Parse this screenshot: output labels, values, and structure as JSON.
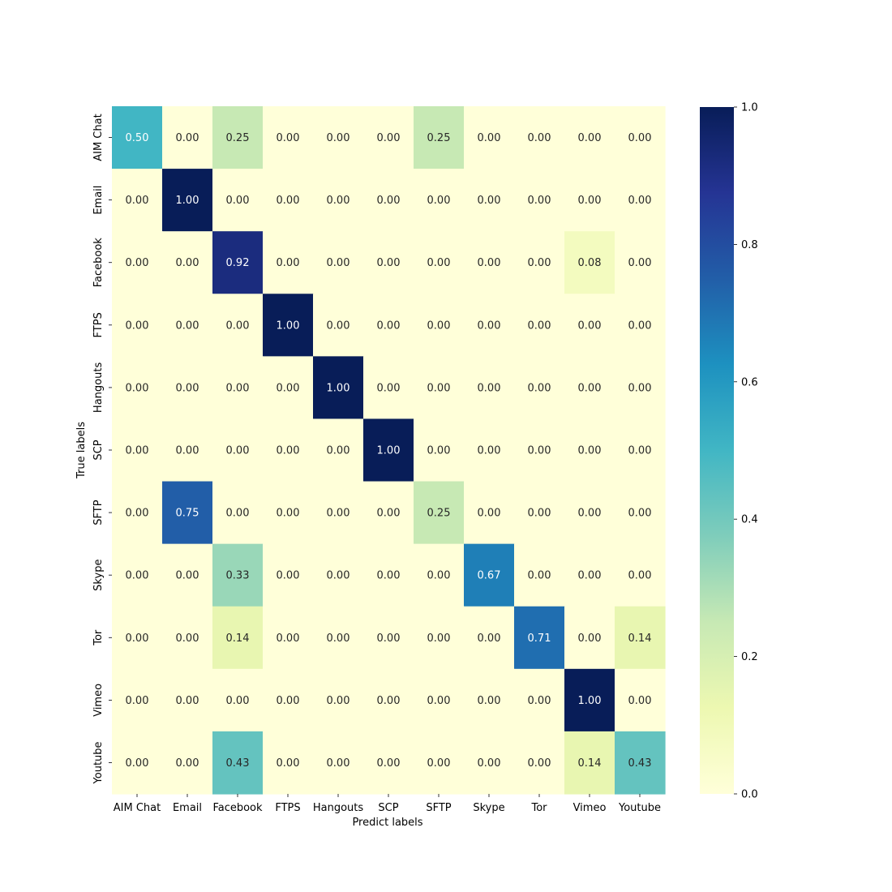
{
  "chart_data": {
    "type": "heatmap",
    "title": "",
    "xlabel": "Predict labels",
    "ylabel": "True labels",
    "x_categories": [
      "AIM Chat",
      "Email",
      "Facebook",
      "FTPS",
      "Hangouts",
      "SCP",
      "SFTP",
      "Skype",
      "Tor",
      "Vimeo",
      "Youtube"
    ],
    "y_categories": [
      "AIM Chat",
      "Email",
      "Facebook",
      "FTPS",
      "Hangouts",
      "SCP",
      "SFTP",
      "Skype",
      "Tor",
      "Vimeo",
      "Youtube"
    ],
    "values": [
      [
        0.5,
        0.0,
        0.25,
        0.0,
        0.0,
        0.0,
        0.25,
        0.0,
        0.0,
        0.0,
        0.0
      ],
      [
        0.0,
        1.0,
        0.0,
        0.0,
        0.0,
        0.0,
        0.0,
        0.0,
        0.0,
        0.0,
        0.0
      ],
      [
        0.0,
        0.0,
        0.92,
        0.0,
        0.0,
        0.0,
        0.0,
        0.0,
        0.0,
        0.08,
        0.0
      ],
      [
        0.0,
        0.0,
        0.0,
        1.0,
        0.0,
        0.0,
        0.0,
        0.0,
        0.0,
        0.0,
        0.0
      ],
      [
        0.0,
        0.0,
        0.0,
        0.0,
        1.0,
        0.0,
        0.0,
        0.0,
        0.0,
        0.0,
        0.0
      ],
      [
        0.0,
        0.0,
        0.0,
        0.0,
        0.0,
        1.0,
        0.0,
        0.0,
        0.0,
        0.0,
        0.0
      ],
      [
        0.0,
        0.75,
        0.0,
        0.0,
        0.0,
        0.0,
        0.25,
        0.0,
        0.0,
        0.0,
        0.0
      ],
      [
        0.0,
        0.0,
        0.33,
        0.0,
        0.0,
        0.0,
        0.0,
        0.67,
        0.0,
        0.0,
        0.0
      ],
      [
        0.0,
        0.0,
        0.14,
        0.0,
        0.0,
        0.0,
        0.0,
        0.0,
        0.71,
        0.0,
        0.14
      ],
      [
        0.0,
        0.0,
        0.0,
        0.0,
        0.0,
        0.0,
        0.0,
        0.0,
        0.0,
        1.0,
        0.0
      ],
      [
        0.0,
        0.0,
        0.43,
        0.0,
        0.0,
        0.0,
        0.0,
        0.0,
        0.0,
        0.14,
        0.43
      ]
    ],
    "value_format": "2 decimals",
    "colorscale": "YlGnBu",
    "vmin": 0.0,
    "vmax": 1.0,
    "colorbar_ticks": [
      "0.0",
      "0.2",
      "0.4",
      "0.6",
      "0.8",
      "1.0"
    ],
    "grid": false,
    "legend": "colorbar-right"
  }
}
